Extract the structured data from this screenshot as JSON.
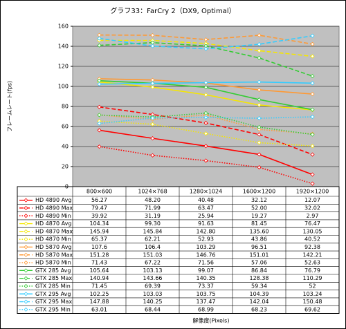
{
  "chart_data": {
    "type": "line",
    "title": "グラフ33：FarCry 2（DX9, Optimal）",
    "y_label": "フレームレート(fps)",
    "x_label": "解像度(Pixels)",
    "categories": [
      "800×600",
      "1024×768",
      "1280×1024",
      "1600×1200",
      "1920×1200"
    ],
    "ylim": [
      0,
      160
    ],
    "yticks": [
      0,
      20,
      40,
      60,
      80,
      100,
      120,
      140,
      160
    ],
    "grid": true,
    "series": [
      {
        "name": "HD 4890 Avg",
        "color": "#ff0000",
        "line_style": "solid",
        "values": [
          56.27,
          48.2,
          40.48,
          32.12,
          12.07
        ],
        "value_labels": [
          "56.27",
          "48.20",
          "40.48",
          "32.12",
          "12.07"
        ]
      },
      {
        "name": "HD 4890 Max",
        "color": "#ff0000",
        "line_style": "dash",
        "values": [
          79.47,
          71.99,
          63.47,
          52,
          32.02
        ],
        "value_labels": [
          "79.47",
          "71.99",
          "63.47",
          "52.00",
          "32.02"
        ]
      },
      {
        "name": "HD 4890 Min",
        "color": "#ff0000",
        "line_style": "dot",
        "values": [
          39.92,
          31.19,
          25.94,
          19.27,
          2.97
        ],
        "value_labels": [
          "39.92",
          "31.19",
          "25.94",
          "19.27",
          "2.97"
        ]
      },
      {
        "name": "HD 4870 Avg",
        "color": "#f5e600",
        "line_style": "solid",
        "values": [
          104.34,
          99.3,
          91.63,
          81.45,
          76.47
        ],
        "value_labels": [
          "104.34",
          "99.30",
          "91.63",
          "81.45",
          "76.47"
        ]
      },
      {
        "name": "HD 4870 Max",
        "color": "#f5e600",
        "line_style": "dash",
        "values": [
          145.94,
          145.84,
          142.8,
          135.6,
          130.05
        ],
        "value_labels": [
          "145.94",
          "145.84",
          "142.80",
          "135.60",
          "130.05"
        ]
      },
      {
        "name": "HD 4870 Min",
        "color": "#f5e600",
        "line_style": "dot",
        "values": [
          65.37,
          62.21,
          52.93,
          43.86,
          40.52
        ],
        "value_labels": [
          "65.37",
          "62.21",
          "52.93",
          "43.86",
          "40.52"
        ]
      },
      {
        "name": "HD 5870 Avg",
        "color": "#ff9933",
        "line_style": "solid",
        "values": [
          107.6,
          106.4,
          103.29,
          96.51,
          92.38
        ],
        "value_labels": [
          "107.6",
          "106.4",
          "103.29",
          "96.51",
          "92.38"
        ]
      },
      {
        "name": "HD 5870 Max",
        "color": "#ff9933",
        "line_style": "dash",
        "values": [
          151.28,
          151.03,
          146.76,
          151.01,
          142.21
        ],
        "value_labels": [
          "151.28",
          "151.03",
          "146.76",
          "151.01",
          "142.21"
        ]
      },
      {
        "name": "HD 5870 Min",
        "color": "#ff9933",
        "line_style": "dot",
        "values": [
          71.43,
          67.22,
          71.56,
          57.06,
          52.63
        ],
        "value_labels": [
          "71.43",
          "67.22",
          "71.56",
          "57.06",
          "52.63"
        ]
      },
      {
        "name": "GTX 285 Avg",
        "color": "#33cc33",
        "line_style": "solid",
        "values": [
          105.64,
          103.13,
          99.07,
          86.84,
          76.79
        ],
        "value_labels": [
          "105.64",
          "103.13",
          "99.07",
          "86.84",
          "76.79"
        ]
      },
      {
        "name": "GTX 285 Max",
        "color": "#33cc33",
        "line_style": "dash",
        "values": [
          140.94,
          143.66,
          140.35,
          128.38,
          110.29
        ],
        "value_labels": [
          "140.94",
          "143.66",
          "140.35",
          "128.38",
          "110.29"
        ]
      },
      {
        "name": "GTX 285 Min",
        "color": "#33cc33",
        "line_style": "dot",
        "values": [
          71.45,
          69.39,
          73.37,
          59.34,
          52
        ],
        "value_labels": [
          "71.45",
          "69.39",
          "73.37",
          "59.34",
          "52"
        ]
      },
      {
        "name": "GTX 295 Avg",
        "color": "#33ccff",
        "line_style": "solid",
        "values": [
          102.25,
          103.03,
          103.75,
          104.39,
          103.24
        ],
        "value_labels": [
          "102.25",
          "103.03",
          "103.75",
          "104.39",
          "103.24"
        ]
      },
      {
        "name": "GTX 295 Max",
        "color": "#33ccff",
        "line_style": "dash",
        "values": [
          147.88,
          140.25,
          137.47,
          142.04,
          150.48
        ],
        "value_labels": [
          "147.88",
          "140.25",
          "137.47",
          "142.04",
          "150.48"
        ]
      },
      {
        "name": "GTX 295 Min",
        "color": "#33ccff",
        "line_style": "dot",
        "values": [
          63.01,
          68.44,
          68.99,
          68.23,
          69.62
        ],
        "value_labels": [
          "63.01",
          "68.44",
          "68.99",
          "68.23",
          "69.62"
        ]
      }
    ]
  }
}
